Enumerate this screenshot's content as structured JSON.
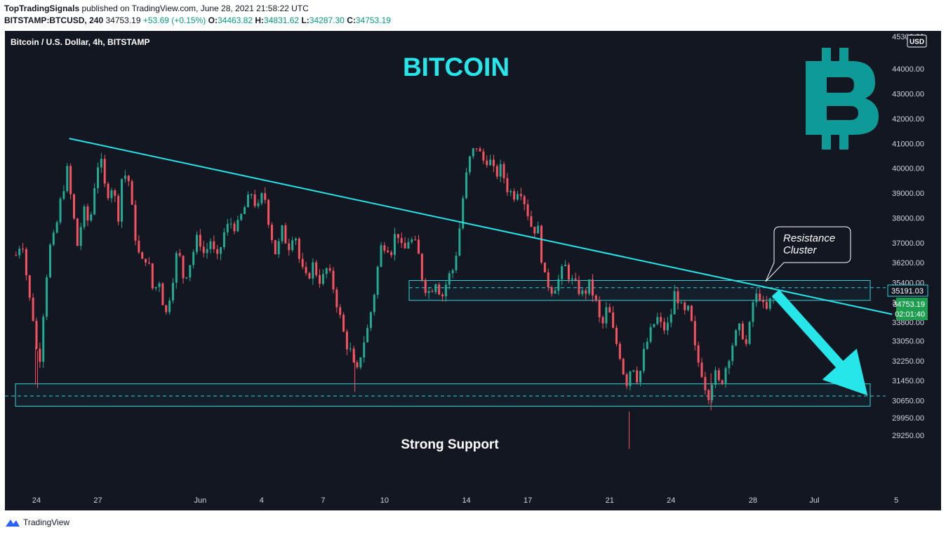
{
  "header": {
    "publisher": "TopTradingSignals",
    "published_text": "published on TradingView.com, June 28, 2021 21:58:22 UTC",
    "symbol": "BITSTAMP:BTCUSD, 240",
    "last": "34753.19",
    "change": "+53.69 (+0.15%)",
    "o_label": "O:",
    "o_value": "34463.82",
    "h_label": "H:",
    "h_value": "34831.62",
    "l_label": "L:",
    "l_value": "34287.30",
    "c_label": "C:",
    "c_value": "34753.19"
  },
  "footer": {
    "brand": "TradingView"
  },
  "chart_data": {
    "type": "candlestick",
    "title": "BITCOIN",
    "legend": "Bitcoin / U.S. Dollar, 4h, BITSTAMP",
    "currency": "USD",
    "y_ticks": [
      45300,
      44000,
      43000,
      42000,
      41000,
      40000,
      39000,
      38000,
      37000,
      36200,
      35400,
      34600,
      33800,
      33050,
      32250,
      31450,
      30650,
      29950,
      29250
    ],
    "y_tick_labels": [
      "45300.00",
      "44000.00",
      "43000.00",
      "42000.00",
      "41000.00",
      "40000.00",
      "39000.00",
      "38000.00",
      "37000.00",
      "36200.00",
      "35400.00",
      "34600.00",
      "33800.00",
      "33050.00",
      "32250.00",
      "31450.00",
      "30650.00",
      "29950.00",
      "29250.00"
    ],
    "x_labels": [
      {
        "label": "24",
        "day": 24
      },
      {
        "label": "27",
        "day": 27
      },
      {
        "label": "Jun",
        "day": 32
      },
      {
        "label": "4",
        "day": 35
      },
      {
        "label": "7",
        "day": 38
      },
      {
        "label": "10",
        "day": 41
      },
      {
        "label": "14",
        "day": 45
      },
      {
        "label": "17",
        "day": 48
      },
      {
        "label": "21",
        "day": 52
      },
      {
        "label": "24",
        "day": 55
      },
      {
        "label": "28",
        "day": 59
      },
      {
        "label": "Jul",
        "day": 62
      },
      {
        "label": "5",
        "day": 66
      }
    ],
    "price_labels": {
      "resistance_line": "35191.03",
      "last_price": "34753.19",
      "countdown": "02:01:40"
    },
    "resistance_zone": [
      34680,
      35480
    ],
    "support_zone": [
      30420,
      31320
    ],
    "support_dashed": 30830,
    "trendline": [
      {
        "day": 25.6,
        "price": 41200
      },
      {
        "day": 65.8,
        "price": 34120
      }
    ],
    "arrow": {
      "from": {
        "day": 60.1,
        "price": 34980
      },
      "to": {
        "day": 64.6,
        "price": 30850
      }
    },
    "annotations": {
      "resistance": [
        "Resistance",
        "Cluster"
      ],
      "support": "Strong Support"
    },
    "anchors": [
      [
        23.0,
        36500
      ],
      [
        23.3,
        37200
      ],
      [
        23.6,
        35000
      ],
      [
        23.9,
        33700
      ],
      [
        24.1,
        31700
      ],
      [
        24.3,
        33900
      ],
      [
        24.6,
        36700
      ],
      [
        24.9,
        37300
      ],
      [
        25.2,
        38800
      ],
      [
        25.5,
        39900
      ],
      [
        25.8,
        38100
      ],
      [
        26.0,
        36900
      ],
      [
        26.3,
        38300
      ],
      [
        26.6,
        37700
      ],
      [
        26.9,
        39800
      ],
      [
        27.1,
        40500
      ],
      [
        27.4,
        38900
      ],
      [
        27.7,
        39300
      ],
      [
        28.0,
        38100
      ],
      [
        28.2,
        39900
      ],
      [
        28.5,
        39500
      ],
      [
        28.8,
        37400
      ],
      [
        29.1,
        36100
      ],
      [
        29.4,
        36500
      ],
      [
        29.7,
        35000
      ],
      [
        30.0,
        35500
      ],
      [
        30.3,
        34000
      ],
      [
        30.6,
        35300
      ],
      [
        30.9,
        36800
      ],
      [
        31.2,
        35500
      ],
      [
        31.5,
        36200
      ],
      [
        31.9,
        37300
      ],
      [
        32.2,
        36500
      ],
      [
        32.5,
        37100
      ],
      [
        32.8,
        36200
      ],
      [
        33.2,
        37500
      ],
      [
        33.5,
        37800
      ],
      [
        33.8,
        37600
      ],
      [
        34.1,
        38300
      ],
      [
        34.5,
        39000
      ],
      [
        34.8,
        38300
      ],
      [
        35.1,
        39100
      ],
      [
        35.4,
        37600
      ],
      [
        35.7,
        36500
      ],
      [
        36.0,
        37500
      ],
      [
        36.3,
        36800
      ],
      [
        36.6,
        37600
      ],
      [
        36.9,
        36000
      ],
      [
        37.2,
        35500
      ],
      [
        37.5,
        36100
      ],
      [
        37.9,
        35400
      ],
      [
        38.2,
        36000
      ],
      [
        38.5,
        35200
      ],
      [
        38.8,
        34100
      ],
      [
        39.1,
        33000
      ],
      [
        39.4,
        32500
      ],
      [
        39.6,
        31500
      ],
      [
        39.9,
        32800
      ],
      [
        40.2,
        33600
      ],
      [
        40.5,
        35000
      ],
      [
        40.8,
        36800
      ],
      [
        41.1,
        37000
      ],
      [
        41.3,
        36600
      ],
      [
        41.6,
        37600
      ],
      [
        41.9,
        36500
      ],
      [
        42.2,
        37200
      ],
      [
        42.6,
        36800
      ],
      [
        42.9,
        35300
      ],
      [
        43.2,
        35000
      ],
      [
        43.5,
        35500
      ],
      [
        43.8,
        34800
      ],
      [
        44.1,
        35600
      ],
      [
        44.4,
        36000
      ],
      [
        44.7,
        37800
      ],
      [
        44.9,
        39300
      ],
      [
        45.2,
        40500
      ],
      [
        45.5,
        40900
      ],
      [
        45.8,
        40300
      ],
      [
        46.1,
        40400
      ],
      [
        46.4,
        39700
      ],
      [
        46.7,
        40000
      ],
      [
        47.0,
        39200
      ],
      [
        47.3,
        38900
      ],
      [
        47.6,
        39300
      ],
      [
        47.9,
        38500
      ],
      [
        48.2,
        37600
      ],
      [
        48.5,
        37500
      ],
      [
        48.8,
        35600
      ],
      [
        49.2,
        35100
      ],
      [
        49.5,
        35500
      ],
      [
        49.8,
        36100
      ],
      [
        50.1,
        35500
      ],
      [
        50.4,
        35200
      ],
      [
        50.7,
        34900
      ],
      [
        51.0,
        35300
      ],
      [
        51.3,
        34700
      ],
      [
        51.6,
        33500
      ],
      [
        51.9,
        34500
      ],
      [
        52.2,
        33300
      ],
      [
        52.5,
        32500
      ],
      [
        52.8,
        31300
      ],
      [
        53.1,
        32200
      ],
      [
        53.4,
        31400
      ],
      [
        53.7,
        32700
      ],
      [
        54.0,
        33400
      ],
      [
        54.3,
        34000
      ],
      [
        54.6,
        33500
      ],
      [
        54.9,
        33700
      ],
      [
        55.2,
        35100
      ],
      [
        55.6,
        34100
      ],
      [
        55.9,
        34300
      ],
      [
        56.2,
        32500
      ],
      [
        56.5,
        31800
      ],
      [
        56.8,
        30800
      ],
      [
        57.1,
        31800
      ],
      [
        57.4,
        31200
      ],
      [
        57.8,
        32400
      ],
      [
        58.1,
        33200
      ],
      [
        58.4,
        33600
      ],
      [
        58.7,
        32800
      ],
      [
        59.0,
        34600
      ],
      [
        59.3,
        35000
      ],
      [
        59.6,
        34100
      ],
      [
        59.9,
        34800
      ],
      [
        60.1,
        34750
      ]
    ],
    "wicks": [
      {
        "day": 23.95,
        "low": 31300
      },
      {
        "day": 24.05,
        "low": 31150
      },
      {
        "day": 39.55,
        "low": 31000
      },
      {
        "day": 52.95,
        "low": 28700
      },
      {
        "day": 56.95,
        "low": 30250
      }
    ]
  }
}
